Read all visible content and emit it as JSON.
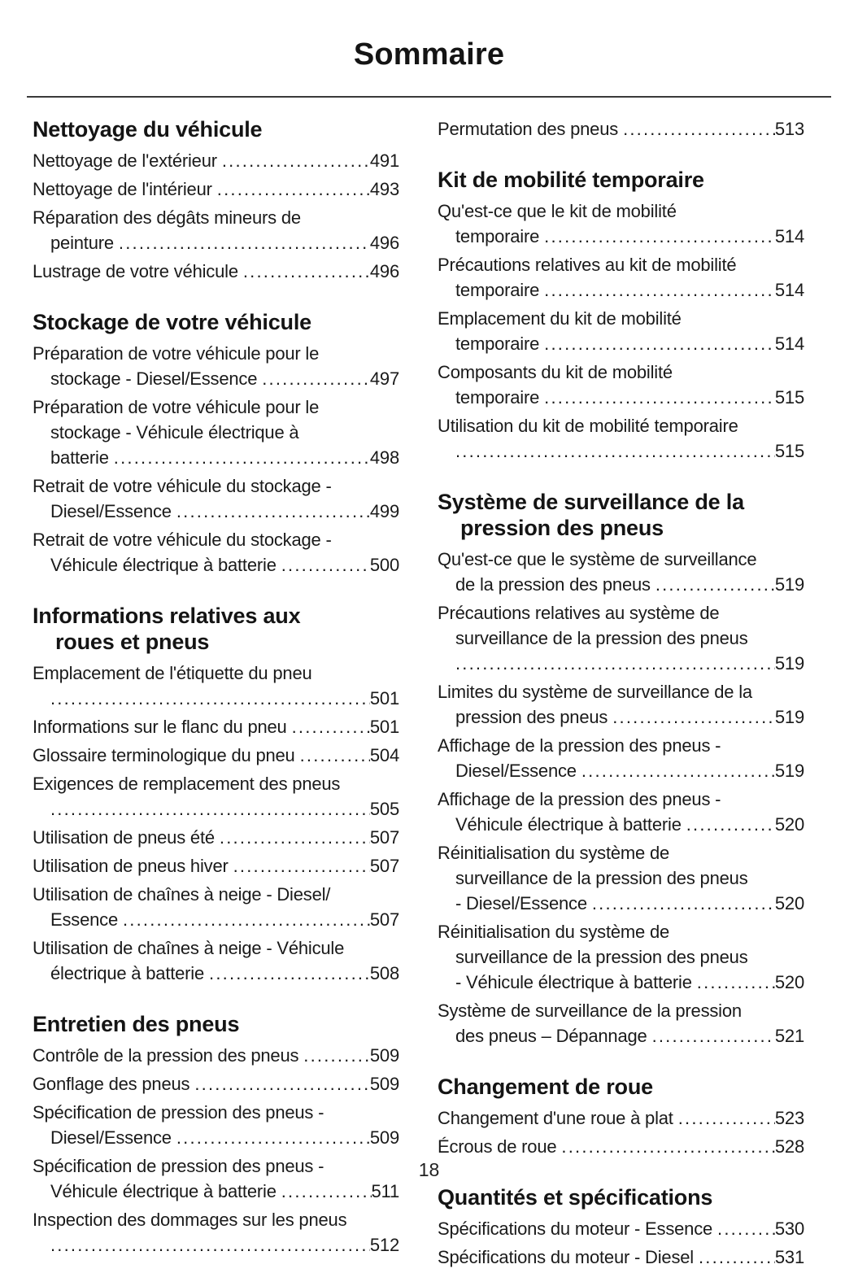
{
  "title": "Sommaire",
  "footer": {
    "page_number": "18"
  },
  "colors": {
    "background": "#ffffff",
    "text": "#1a1a1a",
    "rule": "#3a3a3a"
  },
  "toc": {
    "columns": [
      {
        "blocks": [
          {
            "heading": [
              "Nettoyage du véhicule"
            ],
            "entries": [
              {
                "lines": [
                  "Nettoyage de l'extérieur"
                ],
                "page": "491"
              },
              {
                "lines": [
                  "Nettoyage de l'intérieur"
                ],
                "page": "493"
              },
              {
                "lines": [
                  "Réparation des dégâts mineurs de",
                  "peinture"
                ],
                "page": "496"
              },
              {
                "lines": [
                  "Lustrage de votre véhicule"
                ],
                "page": "496"
              }
            ]
          },
          {
            "heading": [
              "Stockage de votre véhicule"
            ],
            "entries": [
              {
                "lines": [
                  "Préparation de votre véhicule pour le",
                  "stockage - Diesel/Essence"
                ],
                "page": "497"
              },
              {
                "lines": [
                  "Préparation de votre véhicule pour le",
                  "stockage - Véhicule électrique à",
                  "batterie"
                ],
                "page": "498"
              },
              {
                "lines": [
                  "Retrait de votre véhicule du stockage -",
                  "Diesel/Essence"
                ],
                "page": "499"
              },
              {
                "lines": [
                  "Retrait de votre véhicule du stockage -",
                  "Véhicule électrique à batterie"
                ],
                "page": "500"
              }
            ]
          },
          {
            "heading": [
              "Informations relatives aux",
              "roues et pneus"
            ],
            "entries": [
              {
                "lines": [
                  "Emplacement de l'étiquette du pneu",
                  ""
                ],
                "page": "501"
              },
              {
                "lines": [
                  "Informations sur le flanc du pneu"
                ],
                "page": "501"
              },
              {
                "lines": [
                  "Glossaire terminologique du pneu"
                ],
                "page": "504"
              },
              {
                "lines": [
                  "Exigences de remplacement des pneus",
                  ""
                ],
                "page": "505"
              },
              {
                "lines": [
                  "Utilisation de pneus été"
                ],
                "page": "507"
              },
              {
                "lines": [
                  "Utilisation de pneus hiver"
                ],
                "page": "507"
              },
              {
                "lines": [
                  "Utilisation de chaînes à neige - Diesel/",
                  "Essence"
                ],
                "page": "507"
              },
              {
                "lines": [
                  "Utilisation de chaînes à neige - Véhicule",
                  "électrique à batterie"
                ],
                "page": "508"
              }
            ]
          },
          {
            "heading": [
              "Entretien des pneus"
            ],
            "entries": [
              {
                "lines": [
                  "Contrôle de la pression des pneus"
                ],
                "page": "509"
              },
              {
                "lines": [
                  "Gonflage des pneus"
                ],
                "page": "509"
              },
              {
                "lines": [
                  "Spécification de pression des pneus -",
                  "Diesel/Essence"
                ],
                "page": "509"
              },
              {
                "lines": [
                  "Spécification de pression des pneus -",
                  "Véhicule électrique à batterie"
                ],
                "page": "511"
              },
              {
                "lines": [
                  "Inspection des dommages sur les pneus",
                  ""
                ],
                "page": "512"
              }
            ]
          }
        ]
      },
      {
        "blocks": [
          {
            "heading": null,
            "entries": [
              {
                "lines": [
                  "Permutation des pneus"
                ],
                "page": "513"
              }
            ]
          },
          {
            "heading": [
              "Kit de mobilité temporaire"
            ],
            "entries": [
              {
                "lines": [
                  "Qu'est-ce que le kit de mobilité",
                  "temporaire"
                ],
                "page": "514"
              },
              {
                "lines": [
                  "Précautions relatives au kit de mobilité",
                  "temporaire"
                ],
                "page": "514"
              },
              {
                "lines": [
                  "Emplacement du kit de mobilité",
                  "temporaire"
                ],
                "page": "514"
              },
              {
                "lines": [
                  "Composants du kit de mobilité",
                  "temporaire"
                ],
                "page": "515"
              },
              {
                "lines": [
                  "Utilisation du kit de mobilité temporaire",
                  ""
                ],
                "page": "515"
              }
            ]
          },
          {
            "heading": [
              "Système de surveillance de la",
              "pression des pneus"
            ],
            "entries": [
              {
                "lines": [
                  "Qu'est-ce que le système de surveillance",
                  "de la pression des pneus"
                ],
                "page": "519"
              },
              {
                "lines": [
                  "Précautions relatives au système de",
                  "surveillance de la pression des pneus",
                  ""
                ],
                "page": "519"
              },
              {
                "lines": [
                  "Limites du système de surveillance de la",
                  "pression des pneus"
                ],
                "page": "519"
              },
              {
                "lines": [
                  "Affichage de la pression des pneus -",
                  "Diesel/Essence"
                ],
                "page": "519"
              },
              {
                "lines": [
                  "Affichage de la pression des pneus -",
                  "Véhicule électrique à batterie"
                ],
                "page": "520"
              },
              {
                "lines": [
                  "Réinitialisation du système de",
                  "surveillance de la pression des pneus",
                  "- Diesel/Essence"
                ],
                "page": "520"
              },
              {
                "lines": [
                  "Réinitialisation du système de",
                  "surveillance de la pression des pneus",
                  "- Véhicule électrique à batterie"
                ],
                "page": "520"
              },
              {
                "lines": [
                  "Système de surveillance de la pression",
                  "des pneus – Dépannage"
                ],
                "page": "521"
              }
            ]
          },
          {
            "heading": [
              "Changement de roue"
            ],
            "entries": [
              {
                "lines": [
                  "Changement d'une roue à plat"
                ],
                "page": "523"
              },
              {
                "lines": [
                  "Écrous de roue"
                ],
                "page": "528"
              }
            ]
          },
          {
            "heading": [
              "Quantités et spécifications"
            ],
            "entries": [
              {
                "lines": [
                  "Spécifications du moteur - Essence"
                ],
                "page": "530"
              },
              {
                "lines": [
                  "Spécifications du moteur - Diesel"
                ],
                "page": "531"
              }
            ]
          }
        ]
      }
    ]
  }
}
